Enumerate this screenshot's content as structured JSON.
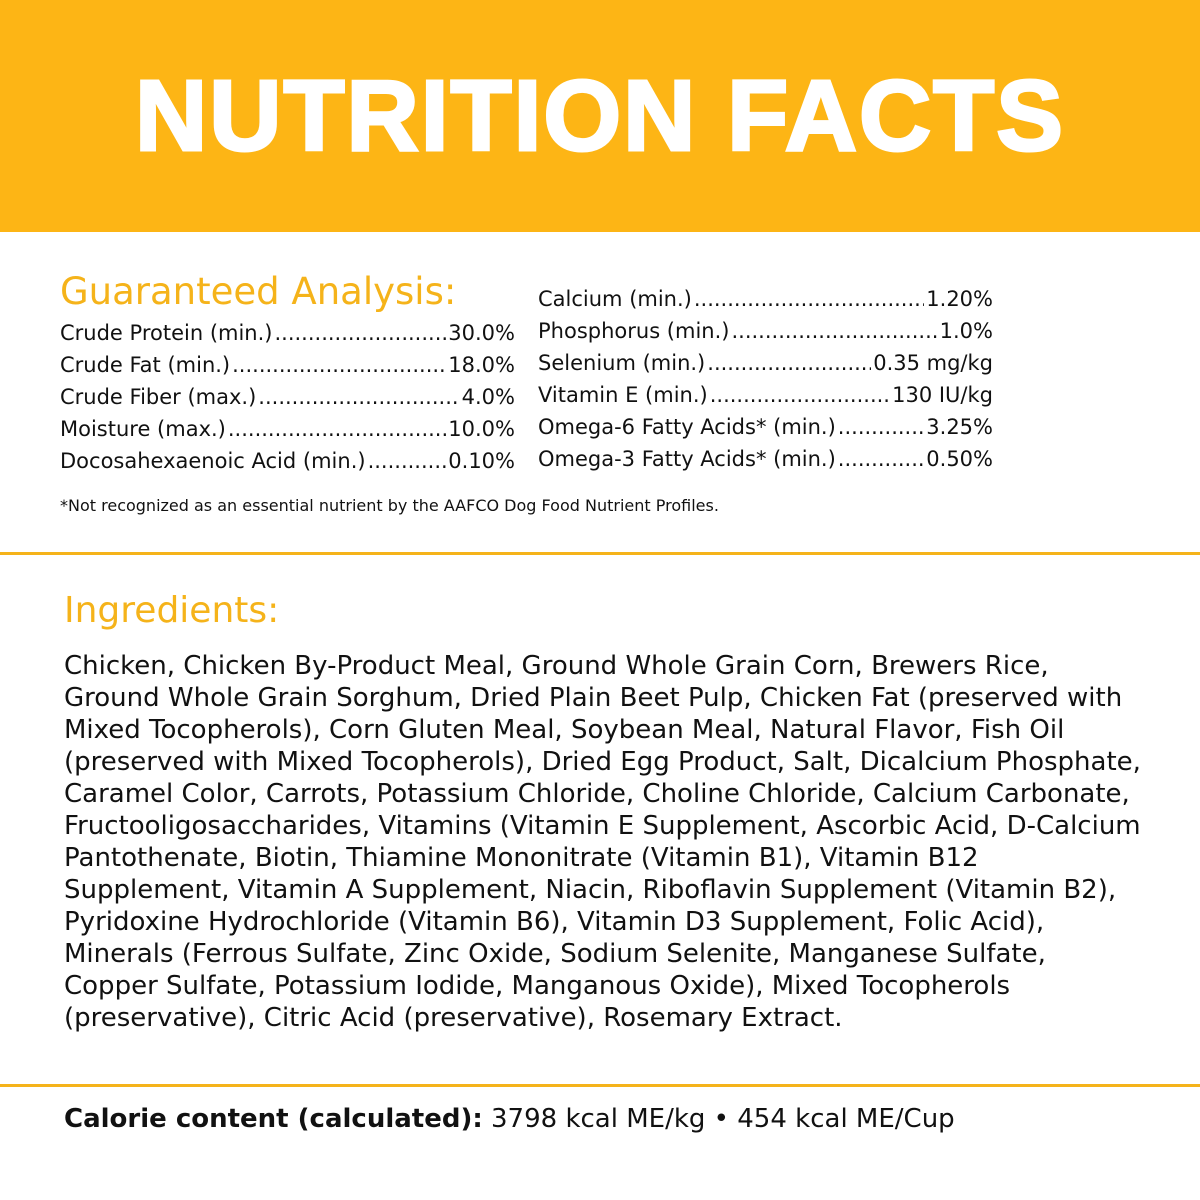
{
  "title": "NUTRITION FACTS",
  "colors": {
    "banner": "#FDB515",
    "accent": "#F5B31A",
    "text": "#111111"
  },
  "guaranteed_analysis": {
    "heading": "Guaranteed Analysis:",
    "left": [
      {
        "label": "Crude Protein (min.)",
        "value": "30.0%"
      },
      {
        "label": "Crude Fat (min.)",
        "value": "18.0%"
      },
      {
        "label": "Crude Fiber (max.)",
        "value": "4.0%"
      },
      {
        "label": "Moisture (max.)",
        "value": "10.0%"
      },
      {
        "label": "Docosahexaenoic Acid (min.)",
        "value": "0.10%"
      }
    ],
    "right": [
      {
        "label": "Calcium (min.)",
        "value": "1.20%"
      },
      {
        "label": "Phosphorus (min.)",
        "value": "1.0%"
      },
      {
        "label": "Selenium (min.)",
        "value": "0.35 mg/kg"
      },
      {
        "label": "Vitamin E (min.)",
        "value": "130 IU/kg"
      },
      {
        "label": "Omega-6 Fatty Acids* (min.)",
        "value": "3.25%"
      },
      {
        "label": "Omega-3 Fatty Acids* (min.)",
        "value": "0.50%"
      }
    ],
    "footnote": "*Not recognized as an essential nutrient by the AAFCO Dog Food Nutrient Profiles."
  },
  "ingredients": {
    "heading": "Ingredients:",
    "text": "Chicken, Chicken By-Product Meal, Ground Whole Grain Corn, Brewers Rice, Ground Whole Grain Sorghum, Dried Plain Beet Pulp, Chicken Fat (preserved with Mixed Tocopherols), Corn Gluten Meal, Soybean Meal, Natural Flavor, Fish Oil (preserved with Mixed Tocopherols), Dried Egg Product, Salt, Dicalcium Phosphate, Caramel Color, Carrots, Potassium Chloride, Choline Chloride, Calcium Carbonate, Fructooligosaccharides, Vitamins (Vitamin E Supplement, Ascorbic Acid, D-Calcium Pantothenate, Biotin, Thiamine Mononitrate (Vitamin B1), Vitamin B12 Supplement, Vitamin A Supplement, Niacin, Riboflavin Supplement (Vitamin B2), Pyridoxine Hydrochloride (Vitamin B6), Vitamin D3 Supplement, Folic Acid), Minerals (Ferrous Sulfate, Zinc Oxide, Sodium Selenite, Manganese Sulfate, Copper Sulfate, Potassium Iodide, Manganous Oxide), Mixed Tocopherols (preservative), Citric Acid (preservative), Rosemary Extract."
  },
  "calorie": {
    "label": "Calorie content (calculated):",
    "value": " 3798 kcal ME/kg • 454 kcal ME/Cup"
  }
}
